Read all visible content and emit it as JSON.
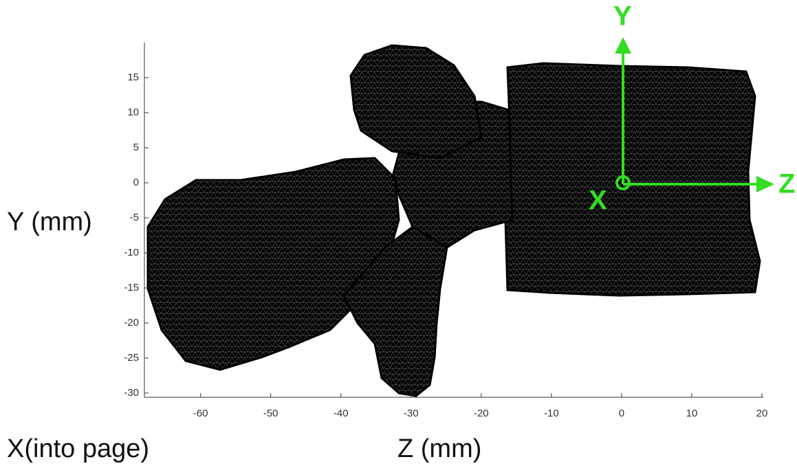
{
  "chart_data": {
    "type": "mesh",
    "xlabel": "Z (mm)",
    "ylabel": "Y (mm)",
    "depth_label": "X(into page)",
    "xlim": [
      -68,
      20
    ],
    "xticks": [
      -60,
      -50,
      -40,
      -30,
      -20,
      -10,
      0,
      10,
      20
    ],
    "ylim": [
      -30.6,
      20
    ],
    "yticks": [
      -30,
      -25,
      -20,
      -15,
      -10,
      -5,
      0,
      5,
      10,
      15
    ],
    "frame": {
      "color": "#33dd22",
      "labels": [
        "Y",
        "Z",
        "X"
      ]
    }
  }
}
